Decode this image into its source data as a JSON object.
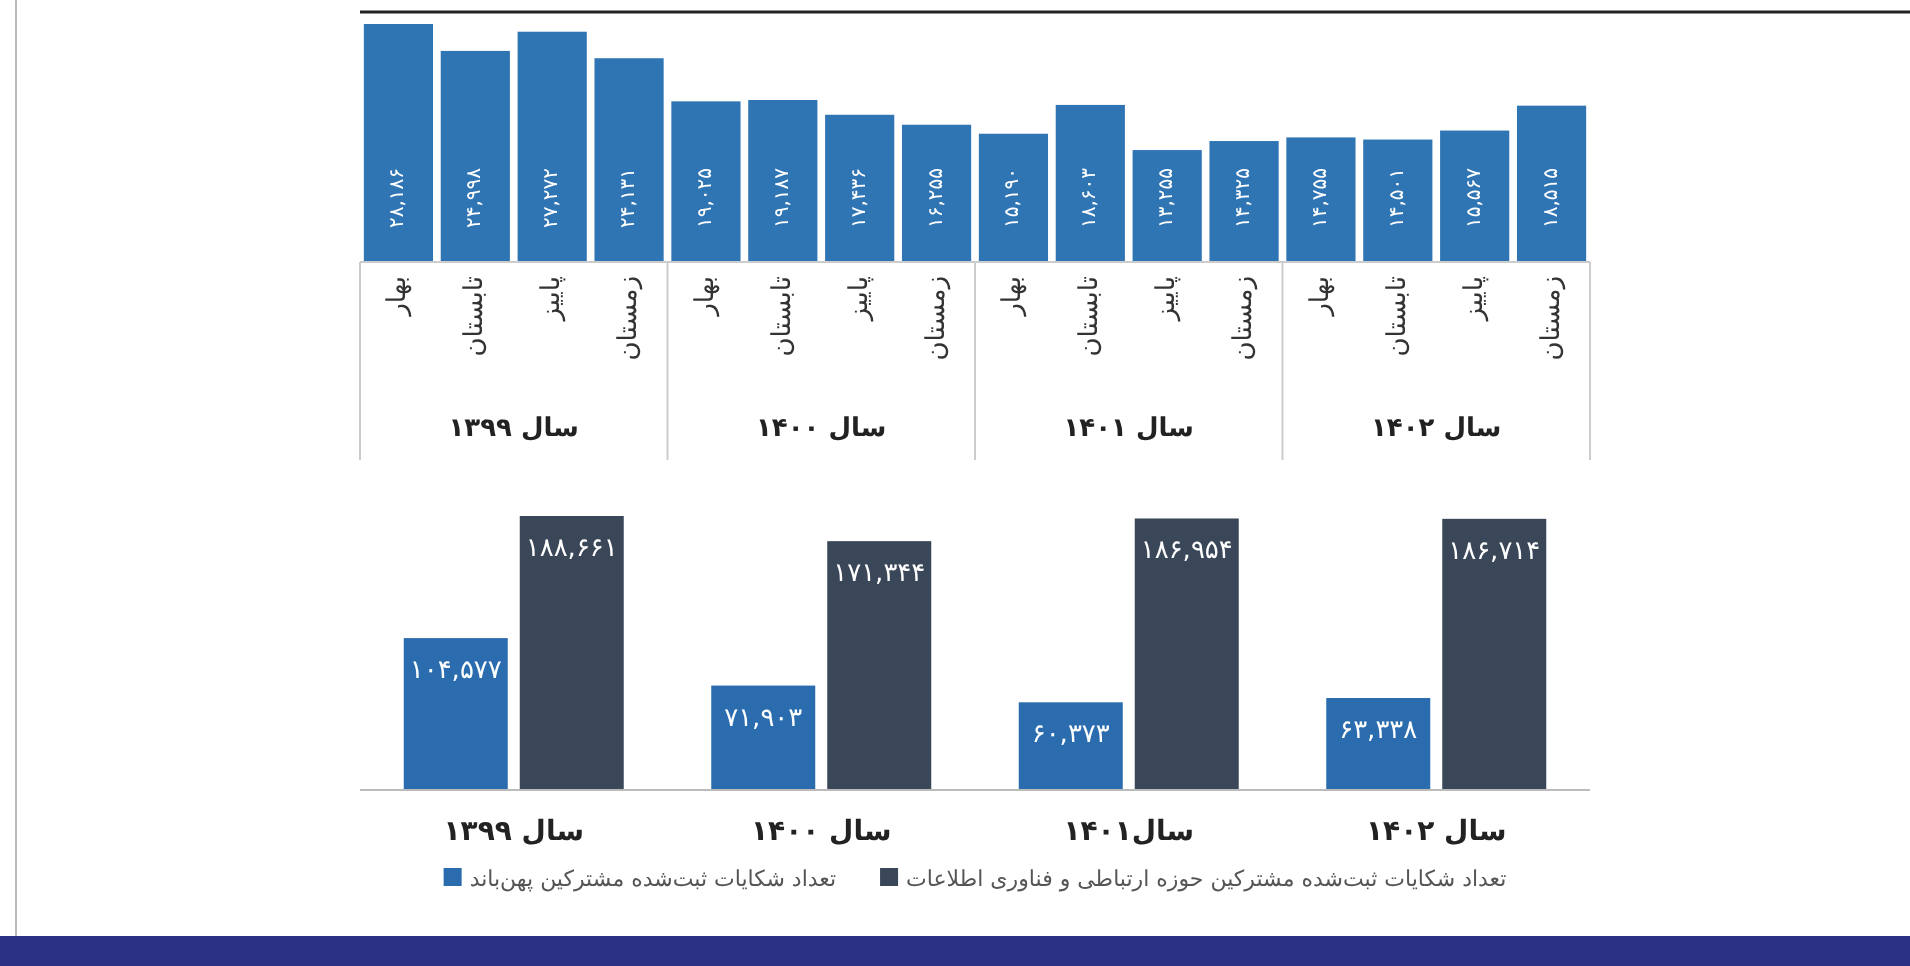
{
  "chart_data": [
    {
      "type": "bar",
      "color": "#2f74b3",
      "categories": [
        "بهار",
        "تابستان",
        "پاییز",
        "زمستان",
        "بهار",
        "تابستان",
        "پاییز",
        "زمستان",
        "بهار",
        "تابستان",
        "پاییز",
        "زمستان",
        "بهار",
        "تابستان",
        "پاییز",
        "زمستان"
      ],
      "values": [
        28186,
        24998,
        27272,
        24131,
        19025,
        19187,
        17436,
        16255,
        15190,
        18603,
        13255,
        14325,
        14755,
        14501,
        15567,
        18515
      ],
      "value_labels": [
        "۲۸,۱۸۶",
        "۲۴,۹۹۸",
        "۲۷,۲۷۲",
        "۲۴,۱۳۱",
        "۱۹,۰۲۵",
        "۱۹,۱۸۷",
        "۱۷,۴۳۶",
        "۱۶,۲۵۵",
        "۱۵,۱۹۰",
        "۱۸,۶۰۳",
        "۱۳,۲۵۵",
        "۱۴,۳۲۵",
        "۱۴,۷۵۵",
        "۱۴,۵۰۱",
        "۱۵,۵۶۷",
        "۱۸,۵۱۵"
      ],
      "annotations": [
        "سال ۱۳۹۹",
        "سال ۱۴۰۰",
        "سال ۱۴۰۱",
        "سال ۱۴۰۲"
      ]
    },
    {
      "type": "bar",
      "legend": "bottom",
      "categories": [
        "سال ۱۳۹۹",
        "سال ۱۴۰۰",
        "سال۱۴۰۱",
        "سال ۱۴۰۲"
      ],
      "series": [
        {
          "name": "تعداد شکایات ثبت‌شده مشترکین پهن‌باند",
          "color": "#2a6cad",
          "values": [
            104577,
            71903,
            60373,
            63338
          ],
          "value_labels": [
            "۱۰۴,۵۷۷",
            "۷۱,۹۰۳",
            "۶۰,۳۷۳",
            "۶۳,۳۳۸"
          ]
        },
        {
          "name": "تعداد شکایات ثبت‌شده مشترکین حوزه ارتباطی و فناوری اطلاعات",
          "color": "#3a4759",
          "values": [
            188661,
            171344,
            186954,
            186714
          ],
          "value_labels": [
            "۱۸۸,۶۶۱",
            "۱۷۱,۳۴۴",
            "۱۸۶,۹۵۴",
            "۱۸۶,۷۱۴"
          ]
        }
      ]
    }
  ]
}
